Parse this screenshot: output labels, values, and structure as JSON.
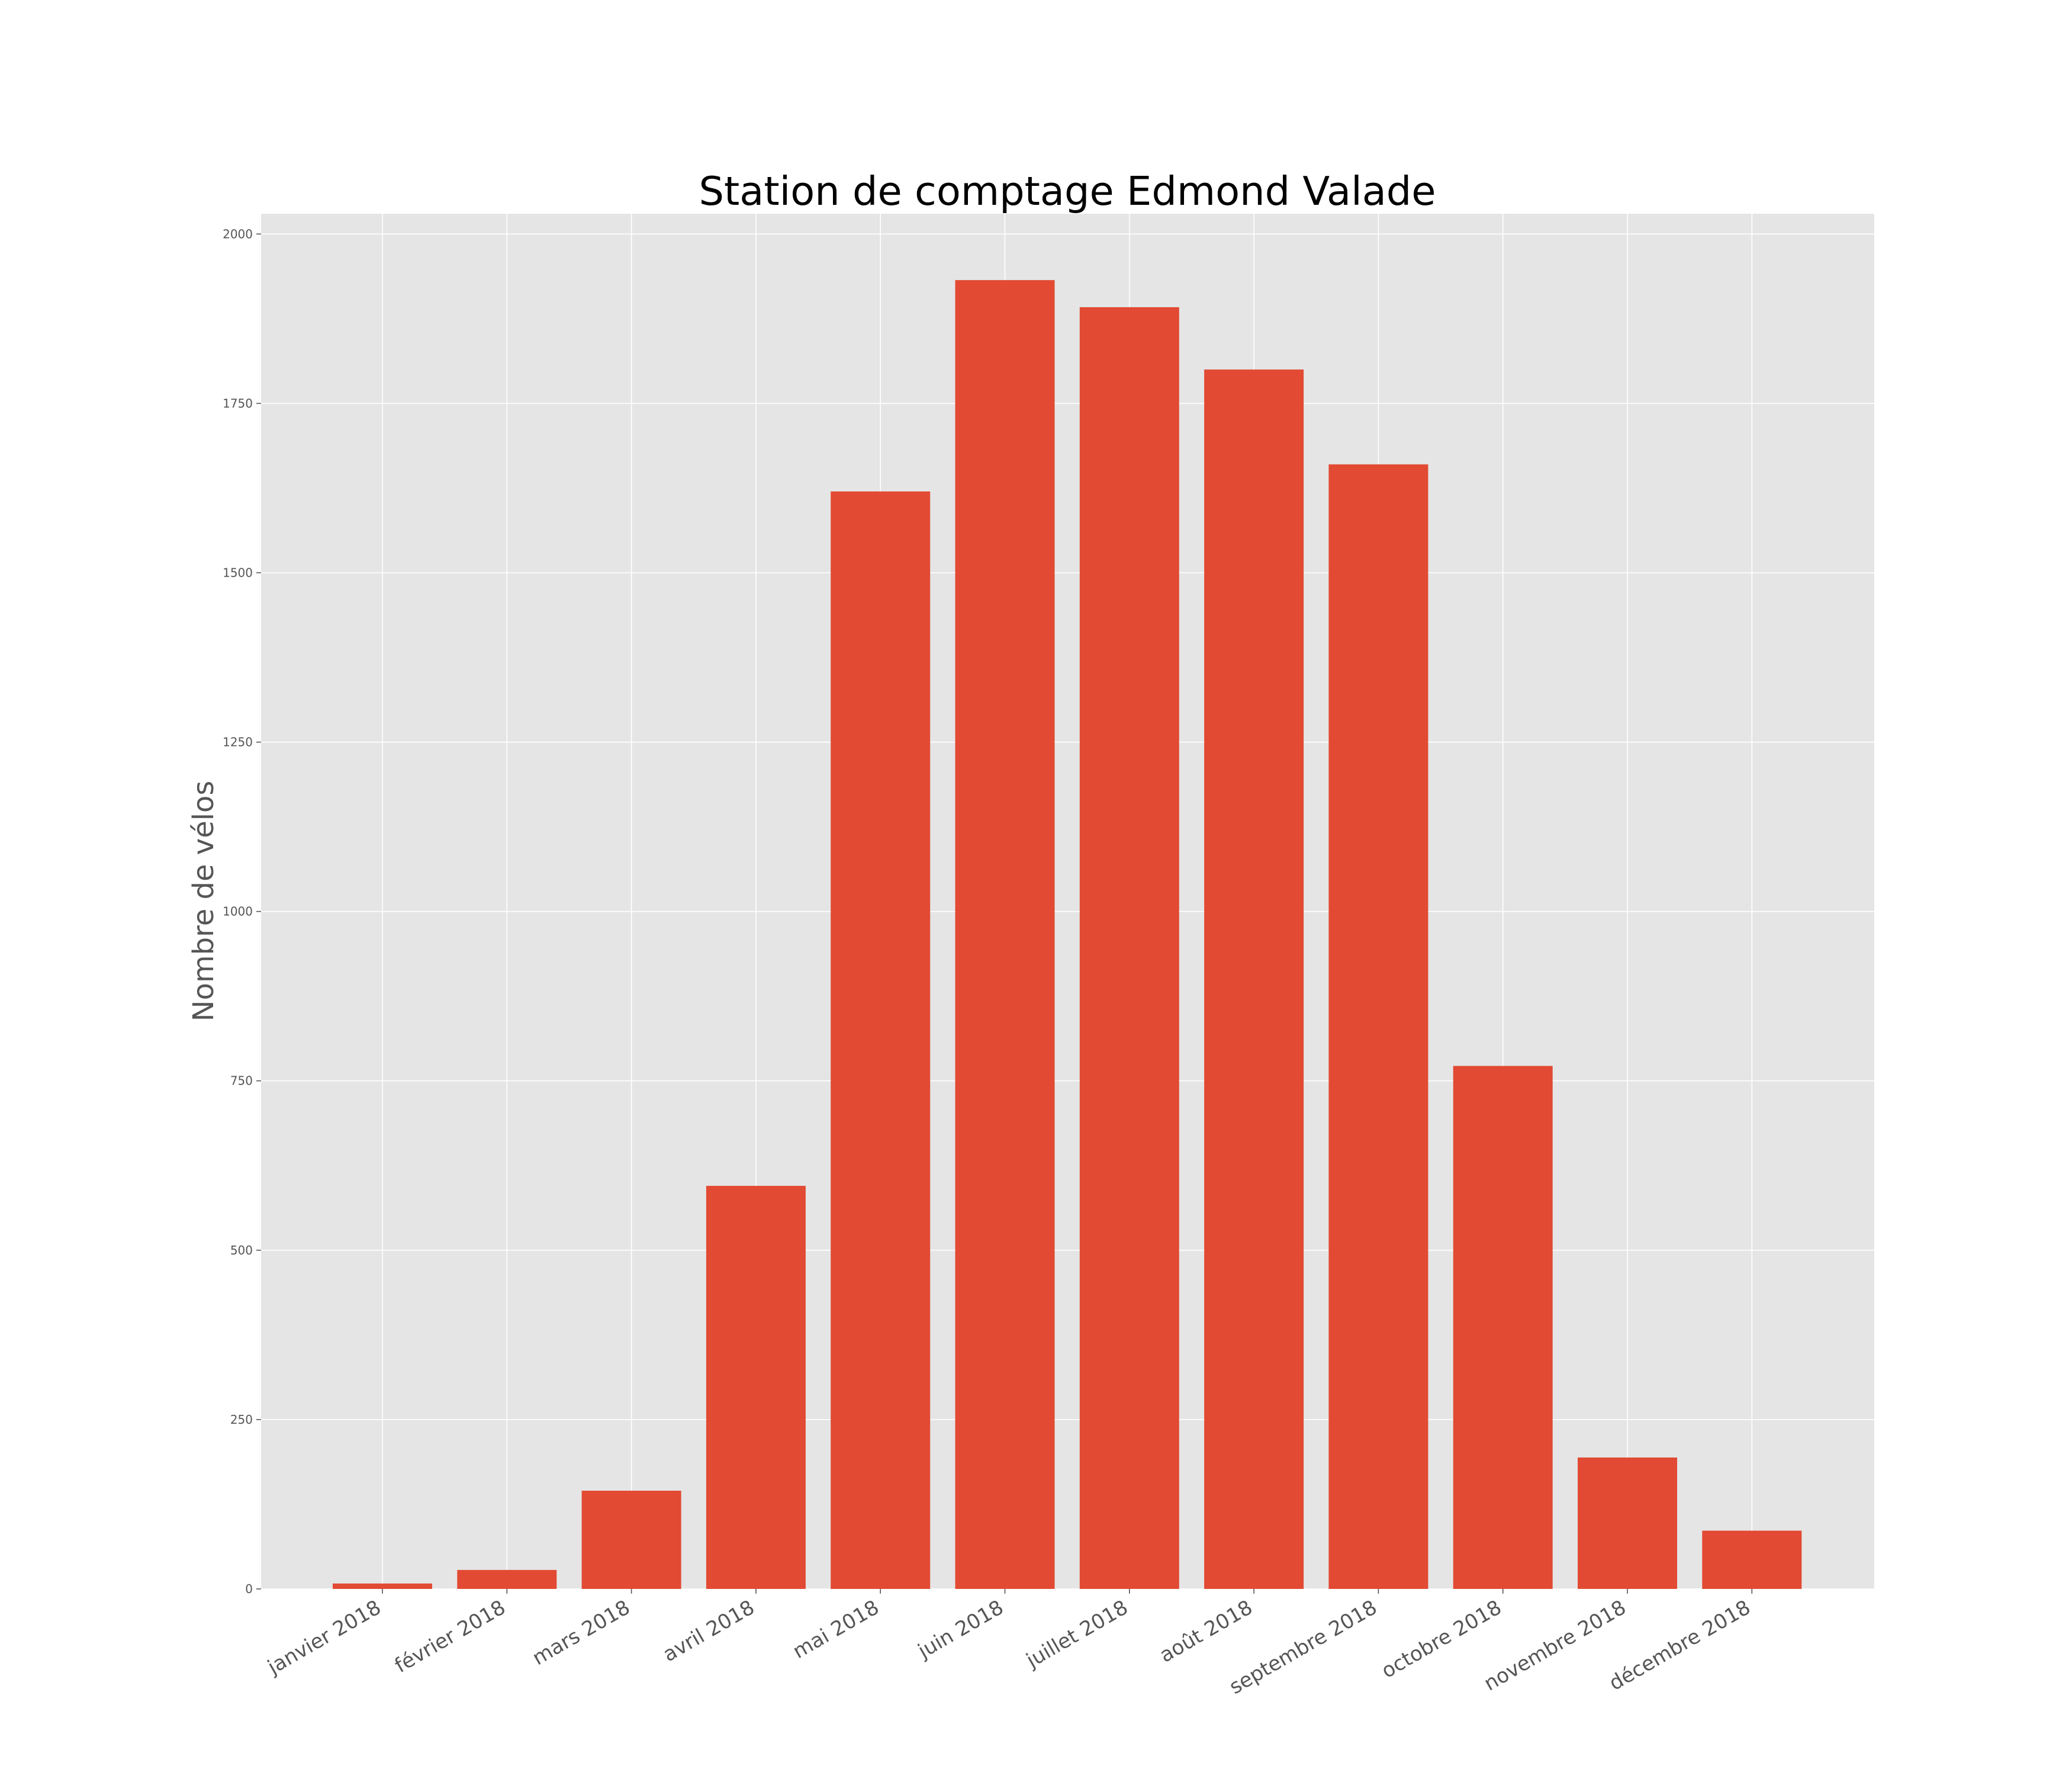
{
  "chart_data": {
    "type": "bar",
    "title": "Station de comptage Edmond Valade",
    "xlabel": "",
    "ylabel": "Nombre de vélos",
    "categories": [
      "janvier 2018",
      "février 2018",
      "mars 2018",
      "avril 2018",
      "mai 2018",
      "juin 2018",
      "juillet 2018",
      "août 2018",
      "septembre 2018",
      "octobre 2018",
      "novembre 2018",
      "décembre 2018"
    ],
    "values": [
      8,
      28,
      145,
      595,
      1620,
      1932,
      1892,
      1800,
      1660,
      772,
      194,
      86
    ],
    "yticks": [
      0,
      250,
      500,
      750,
      1000,
      1250,
      1500,
      1750,
      2000
    ],
    "ylim": [
      0,
      2030
    ],
    "grid": true,
    "colors": {
      "bar": "#e24a33",
      "plot_background": "#e5e5e5",
      "grid": "#ffffff",
      "text": "#555555",
      "title": "#000000"
    }
  }
}
